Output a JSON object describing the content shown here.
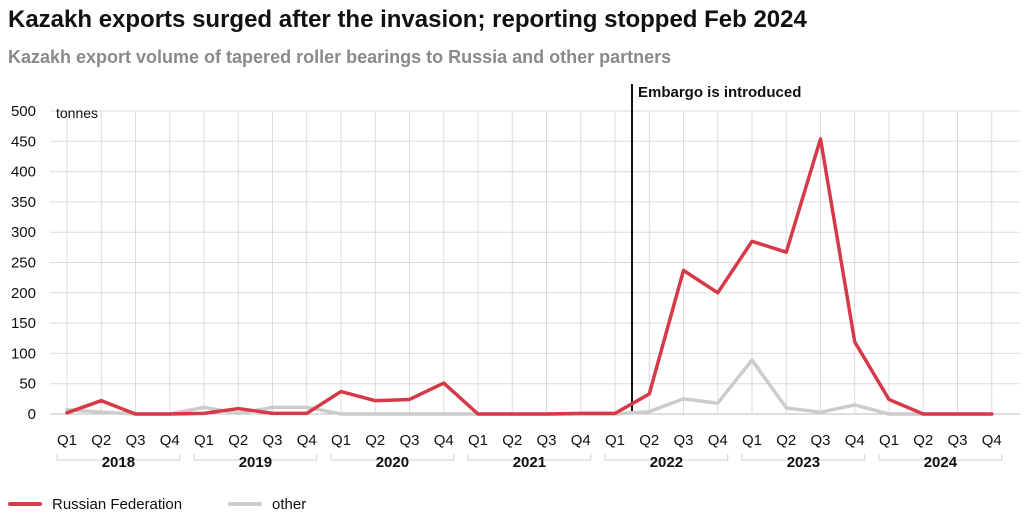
{
  "chart_data": {
    "type": "line",
    "title": "Kazakh exports surged after the invasion; reporting stopped Feb 2024",
    "subtitle": "Kazakh export volume of tapered roller bearings to Russia and other partners",
    "unit_label": "tonnes",
    "ylim": [
      0,
      500
    ],
    "y_ticks": [
      "0",
      "50",
      "100",
      "150",
      "200",
      "250",
      "300",
      "350",
      "400",
      "450",
      "500"
    ],
    "quarter_labels": [
      "Q1",
      "Q2",
      "Q3",
      "Q4",
      "Q1",
      "Q2",
      "Q3",
      "Q4",
      "Q1",
      "Q2",
      "Q3",
      "Q4",
      "Q1",
      "Q2",
      "Q3",
      "Q4",
      "Q1",
      "Q2",
      "Q3",
      "Q4",
      "Q1",
      "Q2",
      "Q3",
      "Q4",
      "Q1",
      "Q2",
      "Q3",
      "Q4"
    ],
    "years": [
      "2018",
      "2019",
      "2020",
      "2021",
      "2022",
      "2023",
      "2024"
    ],
    "annotation": {
      "label": "Embargo is introduced",
      "position": "2022 Q1"
    },
    "grid": true,
    "legend_position": "bottom-left",
    "series": [
      {
        "name": "Russian Federation",
        "color": "#d63a48",
        "values": [
          2,
          22,
          0,
          0,
          1,
          9,
          1,
          1,
          37,
          22,
          24,
          51,
          0,
          0,
          0,
          1,
          1,
          33,
          237,
          200,
          285,
          267,
          454,
          119,
          24,
          0,
          0,
          0
        ]
      },
      {
        "name": "other",
        "color": "#cccccc",
        "values": [
          7,
          3,
          0,
          0,
          11,
          1,
          11,
          11,
          0,
          0,
          0,
          0,
          0,
          0,
          0,
          0,
          0,
          4,
          25,
          18,
          89,
          10,
          3,
          15,
          0,
          0,
          0,
          0
        ]
      }
    ]
  }
}
